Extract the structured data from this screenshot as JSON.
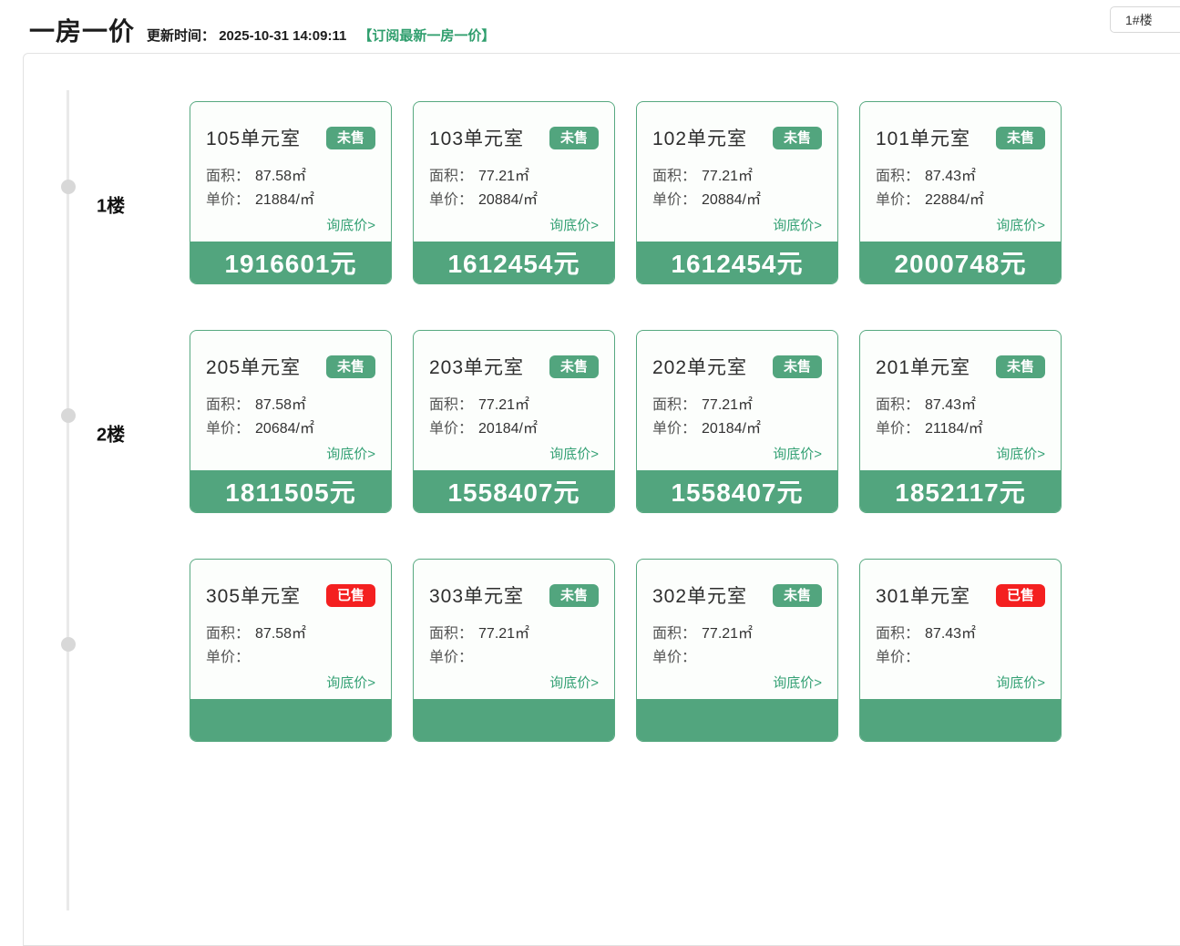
{
  "header": {
    "title": "一房一价",
    "update_label": "更新时间：",
    "update_time": "2025-10-31 14:09:11",
    "subscribe_link": "【订阅最新一房一价】",
    "building_selector": "1#楼"
  },
  "labels": {
    "area": "面积：",
    "unit_price": "单价：",
    "inquire": "询底价>"
  },
  "colors": {
    "primary_green": "#52a57e",
    "link_green": "#2f9e6d",
    "sold_red": "#f42020",
    "card_border_green": "#57a980"
  },
  "floors": [
    {
      "name": "1楼",
      "units": [
        {
          "no": "105单元室",
          "status": "未售",
          "status_style": "green",
          "area": "87.58㎡",
          "unit_price": "21884/㎡",
          "total": "1916601元"
        },
        {
          "no": "103单元室",
          "status": "未售",
          "status_style": "green",
          "area": "77.21㎡",
          "unit_price": "20884/㎡",
          "total": "1612454元"
        },
        {
          "no": "102单元室",
          "status": "未售",
          "status_style": "green",
          "area": "77.21㎡",
          "unit_price": "20884/㎡",
          "total": "1612454元"
        },
        {
          "no": "101单元室",
          "status": "未售",
          "status_style": "green",
          "area": "87.43㎡",
          "unit_price": "22884/㎡",
          "total": "2000748元"
        }
      ]
    },
    {
      "name": "2楼",
      "units": [
        {
          "no": "205单元室",
          "status": "未售",
          "status_style": "green",
          "area": "87.58㎡",
          "unit_price": "20684/㎡",
          "total": "1811505元"
        },
        {
          "no": "203单元室",
          "status": "未售",
          "status_style": "green",
          "area": "77.21㎡",
          "unit_price": "20184/㎡",
          "total": "1558407元"
        },
        {
          "no": "202单元室",
          "status": "未售",
          "status_style": "green",
          "area": "77.21㎡",
          "unit_price": "20184/㎡",
          "total": "1558407元"
        },
        {
          "no": "201单元室",
          "status": "未售",
          "status_style": "green",
          "area": "87.43㎡",
          "unit_price": "21184/㎡",
          "total": "1852117元"
        }
      ]
    },
    {
      "name": "",
      "units": [
        {
          "no": "305单元室",
          "status": "已售",
          "status_style": "red",
          "area": "87.58㎡"
        },
        {
          "no": "303单元室",
          "status": "未售",
          "status_style": "green",
          "area": "77.21㎡"
        },
        {
          "no": "302单元室",
          "status": "未售",
          "status_style": "green",
          "area": "77.21㎡"
        },
        {
          "no": "301单元室",
          "status": "已售",
          "status_style": "red",
          "area": "87.43㎡"
        }
      ]
    }
  ]
}
